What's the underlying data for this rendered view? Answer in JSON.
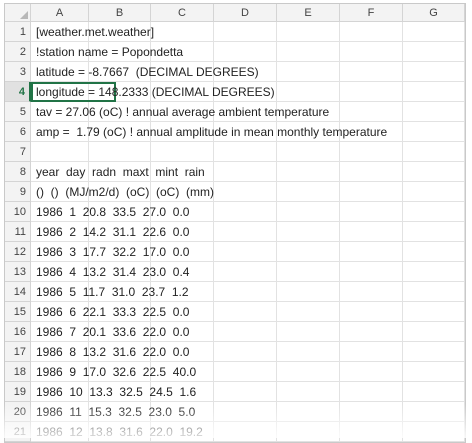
{
  "columns": [
    "A",
    "B",
    "C",
    "D",
    "E",
    "F",
    "G"
  ],
  "rows": [
    {
      "num": "1",
      "text": "[weather.met.weather]"
    },
    {
      "num": "2",
      "text": "!station name = Popondetta"
    },
    {
      "num": "3",
      "text": "latitude = -8.7667  (DECIMAL DEGREES)"
    },
    {
      "num": "4",
      "text": "longitude = 148.2333 (DECIMAL DEGREES)"
    },
    {
      "num": "5",
      "text": "tav = 27.06 (oC) ! annual average ambient temperature"
    },
    {
      "num": "6",
      "text": "amp =  1.79 (oC) ! annual amplitude in mean monthly temperature"
    },
    {
      "num": "7",
      "text": ""
    },
    {
      "num": "8",
      "text": "year  day  radn  maxt  mint  rain"
    },
    {
      "num": "9",
      "text": "()  ()  (MJ/m2/d)  (oC)  (oC)  (mm)"
    },
    {
      "num": "10",
      "text": "1986  1  20.8  33.5  27.0  0.0"
    },
    {
      "num": "11",
      "text": "1986  2  14.2  31.1  22.6  0.0"
    },
    {
      "num": "12",
      "text": "1986  3  17.7  32.2  17.0  0.0"
    },
    {
      "num": "13",
      "text": "1986  4  13.2  31.4  23.0  0.4"
    },
    {
      "num": "14",
      "text": "1986  5  11.7  31.0  23.7  1.2"
    },
    {
      "num": "15",
      "text": "1986  6  22.1  33.3  22.5  0.0"
    },
    {
      "num": "16",
      "text": "1986  7  20.1  33.6  22.0  0.0"
    },
    {
      "num": "17",
      "text": "1986  8  13.2  31.6  22.0  0.0"
    },
    {
      "num": "18",
      "text": "1986  9  17.0  32.6  22.5  40.0"
    },
    {
      "num": "19",
      "text": "1986  10  13.3  32.5  24.5  1.6"
    },
    {
      "num": "20",
      "text": "1986  11  15.3  32.5  23.0  5.0"
    },
    {
      "num": "21",
      "text": "1986  12  13.8  31.6  22.0  19.2"
    }
  ],
  "selected_row": "4",
  "colors": {
    "selection": "#217346",
    "header_bg": "#f3f3f3",
    "grid": "#e2e2e2"
  }
}
